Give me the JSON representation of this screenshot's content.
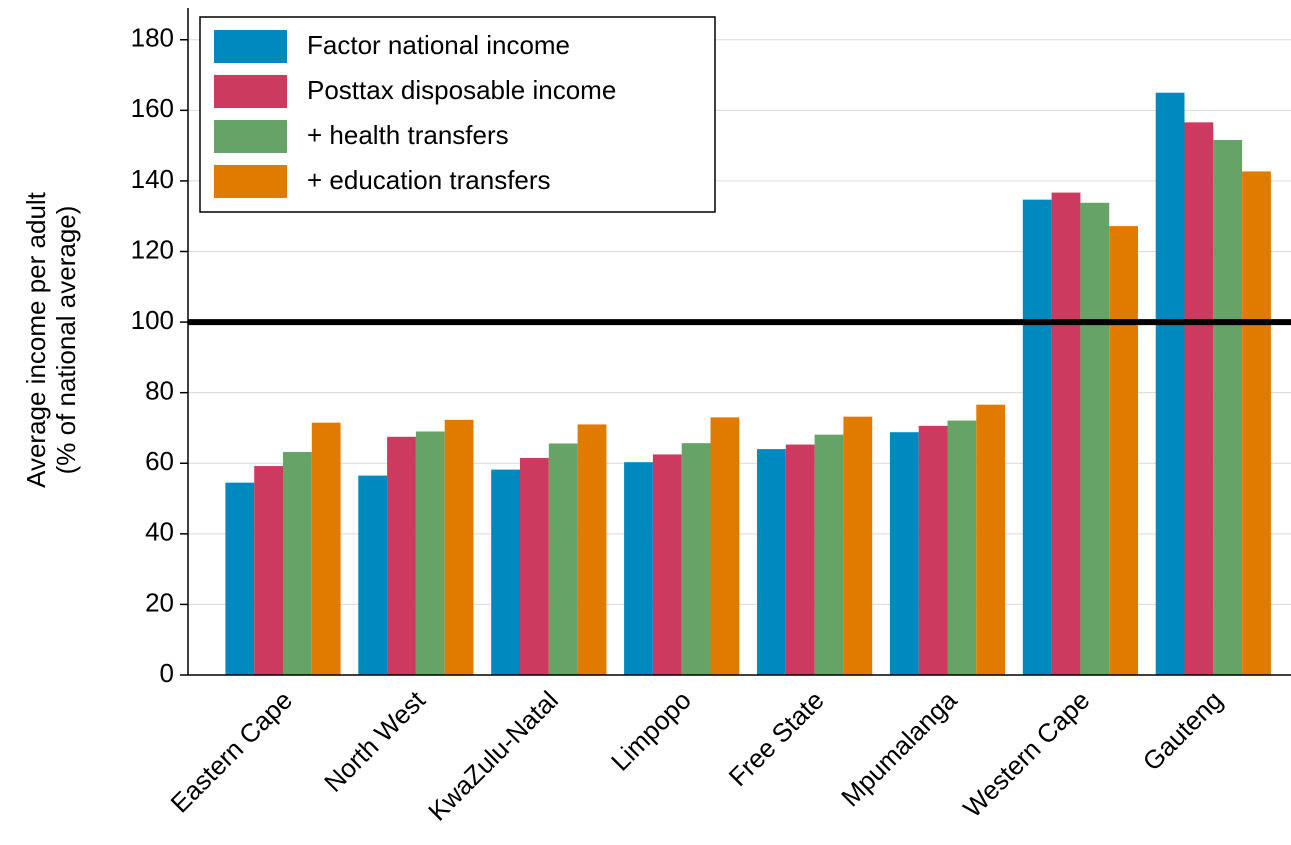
{
  "chart_data": {
    "type": "bar",
    "ylabel": [
      "Average income per adult",
      "(% of national average)"
    ],
    "categories": [
      "Eastern Cape",
      "North West",
      "KwaZulu-Natal",
      "Limpopo",
      "Free State",
      "Mpumalanga",
      "Western Cape",
      "Gauteng"
    ],
    "series": [
      {
        "name": "Factor national income",
        "color": "#0089bf",
        "values": [
          54.5,
          56.5,
          58.2,
          60.3,
          64,
          68.8,
          134.7,
          165
        ]
      },
      {
        "name": "Posttax disposable income",
        "color": "#cc3a60",
        "values": [
          59.2,
          67.5,
          61.5,
          62.5,
          65.3,
          70.6,
          136.7,
          156.6
        ]
      },
      {
        "name": "+ health transfers",
        "color": "#66a366",
        "values": [
          63.2,
          69,
          65.6,
          65.7,
          68.1,
          72.1,
          133.8,
          151.6
        ]
      },
      {
        "name": "+ education transfers",
        "color": "#e07b00",
        "values": [
          71.5,
          72.3,
          71,
          73,
          73.2,
          76.6,
          127.2,
          142.7
        ]
      }
    ],
    "reference_line": 100,
    "ylim": [
      0,
      189
    ],
    "yticks": [
      0,
      20,
      40,
      60,
      80,
      100,
      120,
      140,
      160,
      180
    ],
    "grid": true,
    "legend": "upper left"
  }
}
